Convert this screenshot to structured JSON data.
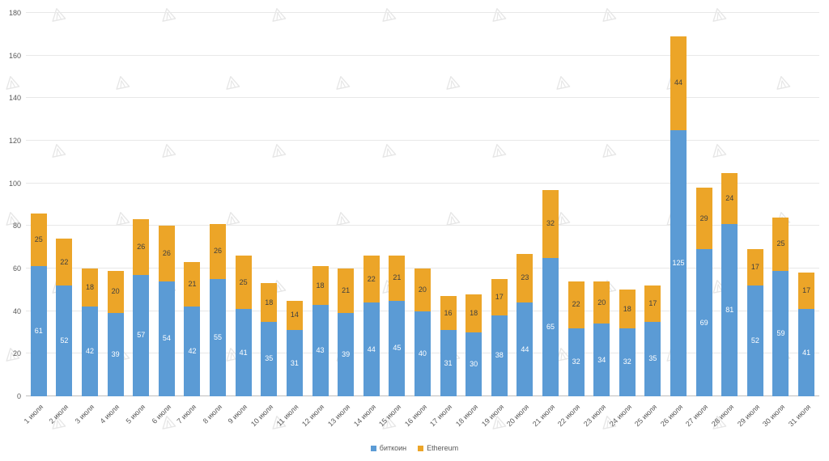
{
  "chart_data": {
    "type": "bar",
    "stacked": true,
    "title": "",
    "xlabel": "",
    "ylabel": "",
    "ylim": [
      0,
      180
    ],
    "ytick_step": 20,
    "grid": true,
    "legend_position": "bottom",
    "categories": [
      "1 июля",
      "2 июля",
      "3 июля",
      "4 июля",
      "5 июля",
      "6 июля",
      "7 июля",
      "8 июля",
      "9 июля",
      "10 июля",
      "11 июля",
      "12 июля",
      "13 июля",
      "14 июля",
      "15 июля",
      "16 июля",
      "17 июля",
      "18 июля",
      "19 июля",
      "20 июля",
      "21 июля",
      "22 июля",
      "23 июля",
      "24 июля",
      "25 июля",
      "26 июля",
      "27 июля",
      "28 июля",
      "29 июля",
      "30 июля",
      "31 июля"
    ],
    "series": [
      {
        "name": "биткоин",
        "color": "#5b9bd5",
        "label_color": "#ffffff",
        "values": [
          61,
          52,
          42,
          39,
          57,
          54,
          42,
          55,
          41,
          35,
          31,
          43,
          39,
          44,
          45,
          40,
          31,
          30,
          38,
          44,
          65,
          32,
          34,
          32,
          35,
          125,
          69,
          81,
          52,
          59,
          41
        ]
      },
      {
        "name": "Ethereum",
        "color": "#eca528",
        "label_color": "#3f3f3f",
        "values": [
          25,
          22,
          18,
          20,
          26,
          26,
          21,
          26,
          25,
          18,
          14,
          18,
          21,
          22,
          21,
          20,
          16,
          18,
          17,
          23,
          32,
          22,
          20,
          18,
          17,
          44,
          29,
          24,
          17,
          25,
          17
        ]
      }
    ]
  }
}
